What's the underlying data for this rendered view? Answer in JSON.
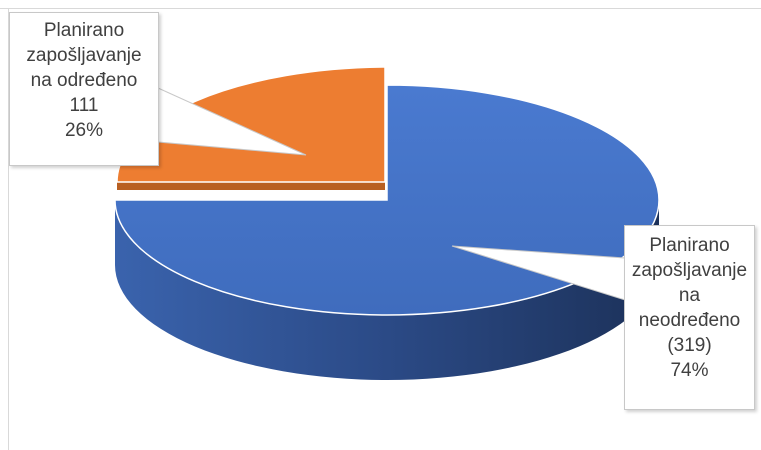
{
  "chart_data": {
    "type": "pie",
    "title": "",
    "slices": [
      {
        "label_lines": [
          "Planirano",
          "zapošljavanje",
          "na",
          "neodređeno",
          "(319)",
          "74%"
        ],
        "value": 319,
        "percent": "74%",
        "color": "#4472c4",
        "side_color": "#2e4e8c"
      },
      {
        "label_lines": [
          "Planirano",
          "zapošljavanje",
          "na određeno",
          "111",
          "26%"
        ],
        "value": 111,
        "percent": "26%",
        "color": "#ed7d31",
        "side_color": "#b85f22"
      }
    ],
    "style": "3d-exploded",
    "legend": "none",
    "data_labels": "callouts"
  }
}
